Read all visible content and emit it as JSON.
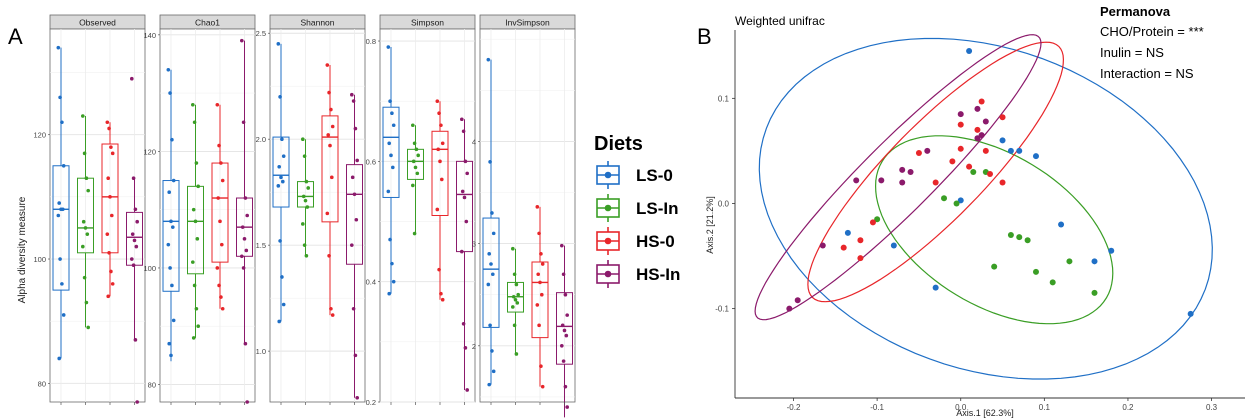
{
  "panel_a": {
    "letter": "A",
    "ylabel": "Alpha diversity measure",
    "legend": {
      "title": "Diets",
      "entries": [
        {
          "label": "LS-0",
          "color": "#1f6fc6"
        },
        {
          "label": "LS-In",
          "color": "#3a9e25"
        },
        {
          "label": "HS-0",
          "color": "#e8262a"
        },
        {
          "label": "HS-In",
          "color": "#8b1a6b"
        }
      ]
    }
  },
  "panel_b": {
    "letter": "B",
    "title": "Weighted unifrac",
    "xlabel": "Axis.1   [62.3%]",
    "ylabel": "Axis.2   [21.2%]",
    "permanova": {
      "title": "Permanova",
      "lines": [
        "CHO/Protein = ***",
        "Inulin = NS",
        "Interaction = NS"
      ]
    }
  },
  "chart_data": [
    {
      "type": "box",
      "title": "Observed",
      "ylabel": "Alpha diversity measure",
      "ylim": [
        77,
        137
      ],
      "yticks": [
        80,
        100,
        120
      ],
      "groups": [
        {
          "name": "LS-0",
          "box": {
            "q1": 95,
            "median": 108,
            "q3": 115,
            "lo": 84,
            "hi": 134
          },
          "points": [
            134,
            126,
            122,
            115,
            109,
            108,
            108,
            107,
            100,
            96,
            91,
            84
          ]
        },
        {
          "name": "LS-In",
          "box": {
            "q1": 101,
            "median": 105,
            "q3": 113,
            "lo": 89,
            "hi": 123
          },
          "points": [
            123,
            117,
            113,
            111,
            106,
            105,
            104,
            102,
            97,
            93,
            89
          ]
        },
        {
          "name": "HS-0",
          "box": {
            "q1": 101,
            "median": 110,
            "q3": 118.5,
            "lo": 94,
            "hi": 122
          },
          "points": [
            122,
            121,
            118,
            117,
            113,
            110,
            107,
            104,
            101,
            98,
            96,
            94
          ]
        },
        {
          "name": "HS-In",
          "box": {
            "q1": 99,
            "median": 103.5,
            "q3": 107.5,
            "lo": 87,
            "hi": 113
          },
          "points": [
            129,
            113,
            108,
            106,
            104,
            103,
            102,
            100,
            99,
            87,
            77
          ]
        }
      ]
    },
    {
      "type": "box",
      "title": "Chao1",
      "ylim": [
        77,
        141
      ],
      "yticks": [
        80,
        100,
        120,
        140
      ],
      "groups": [
        {
          "name": "LS-0",
          "box": {
            "q1": 96,
            "median": 108,
            "q3": 115,
            "lo": 84,
            "hi": 134
          },
          "points": [
            134,
            130,
            122,
            115,
            113,
            108,
            107,
            104,
            100,
            97,
            91,
            87,
            85
          ]
        },
        {
          "name": "LS-In",
          "box": {
            "q1": 99,
            "median": 108,
            "q3": 114,
            "lo": 88,
            "hi": 128
          },
          "points": [
            128,
            125,
            118,
            114,
            110,
            108,
            105,
            101,
            97,
            93,
            90,
            88
          ]
        },
        {
          "name": "HS-0",
          "box": {
            "q1": 101,
            "median": 112,
            "q3": 118,
            "lo": 93,
            "hi": 128
          },
          "points": [
            128,
            121,
            118,
            115,
            112,
            108,
            104,
            100,
            97,
            95,
            93
          ]
        },
        {
          "name": "HS-In",
          "box": {
            "q1": 102,
            "median": 107,
            "q3": 112,
            "lo": 87,
            "hi": 139
          },
          "points": [
            139,
            125,
            112,
            109,
            107,
            105,
            103,
            102,
            100,
            87,
            77
          ]
        }
      ]
    },
    {
      "type": "box",
      "title": "Shannon",
      "ylim": [
        0.76,
        2.52
      ],
      "yticks": [
        1.0,
        1.5,
        2.0,
        2.5
      ],
      "groups": [
        {
          "name": "LS-0",
          "box": {
            "q1": 1.68,
            "median": 1.83,
            "q3": 2.01,
            "lo": 1.14,
            "hi": 2.45
          },
          "points": [
            2.45,
            2.2,
            2.0,
            1.92,
            1.87,
            1.82,
            1.8,
            1.78,
            1.52,
            1.35,
            1.22,
            1.14
          ]
        },
        {
          "name": "LS-In",
          "box": {
            "q1": 1.68,
            "median": 1.73,
            "q3": 1.8,
            "lo": 1.45,
            "hi": 2.0
          },
          "points": [
            2.0,
            1.92,
            1.8,
            1.77,
            1.73,
            1.71,
            1.68,
            1.6,
            1.5,
            1.45
          ]
        },
        {
          "name": "HS-0",
          "box": {
            "q1": 1.61,
            "median": 2.01,
            "q3": 2.11,
            "lo": 1.17,
            "hi": 2.35
          },
          "points": [
            2.35,
            2.22,
            2.14,
            2.06,
            2.02,
            1.97,
            1.82,
            1.65,
            1.45,
            1.2,
            1.17
          ]
        },
        {
          "name": "HS-In",
          "box": {
            "q1": 1.41,
            "median": 1.74,
            "q3": 1.88,
            "lo": 0.78,
            "hi": 2.21
          },
          "points": [
            2.21,
            2.18,
            2.05,
            1.9,
            1.82,
            1.74,
            1.62,
            1.5,
            1.2,
            0.98,
            0.78
          ]
        }
      ]
    },
    {
      "type": "box",
      "title": "Simpson",
      "ylim": [
        0.2,
        0.82
      ],
      "yticks": [
        0.2,
        0.4,
        0.6,
        0.8
      ],
      "groups": [
        {
          "name": "LS-0",
          "box": {
            "q1": 0.54,
            "median": 0.64,
            "q3": 0.69,
            "lo": 0.38,
            "hi": 0.79
          },
          "points": [
            0.79,
            0.7,
            0.68,
            0.66,
            0.63,
            0.61,
            0.59,
            0.55,
            0.47,
            0.43,
            0.4,
            0.38
          ]
        },
        {
          "name": "LS-In",
          "box": {
            "q1": 0.57,
            "median": 0.6,
            "q3": 0.62,
            "lo": 0.48,
            "hi": 0.66
          },
          "points": [
            0.66,
            0.63,
            0.62,
            0.61,
            0.6,
            0.59,
            0.58,
            0.56,
            0.48
          ]
        },
        {
          "name": "HS-0",
          "box": {
            "q1": 0.51,
            "median": 0.62,
            "q3": 0.65,
            "lo": 0.37,
            "hi": 0.7
          },
          "points": [
            0.7,
            0.68,
            0.66,
            0.63,
            0.62,
            0.6,
            0.57,
            0.52,
            0.42,
            0.38,
            0.37
          ]
        },
        {
          "name": "HS-In",
          "box": {
            "q1": 0.45,
            "median": 0.545,
            "q3": 0.6,
            "lo": 0.22,
            "hi": 0.67
          },
          "points": [
            0.67,
            0.65,
            0.6,
            0.58,
            0.55,
            0.54,
            0.5,
            0.45,
            0.33,
            0.29,
            0.22
          ]
        }
      ]
    },
    {
      "type": "box",
      "title": "InvSimpson",
      "ylim": [
        1.45,
        5.1
      ],
      "yticks": [
        2,
        3,
        4
      ],
      "groups": [
        {
          "name": "LS-0",
          "box": {
            "q1": 2.18,
            "median": 2.75,
            "q3": 3.25,
            "lo": 1.62,
            "hi": 4.8
          },
          "points": [
            4.8,
            3.8,
            3.3,
            3.1,
            2.9,
            2.8,
            2.7,
            2.6,
            2.2,
            1.95,
            1.75,
            1.62
          ]
        },
        {
          "name": "LS-In",
          "box": {
            "q1": 2.33,
            "median": 2.48,
            "q3": 2.62,
            "lo": 1.92,
            "hi": 2.95
          },
          "points": [
            2.95,
            2.7,
            2.6,
            2.5,
            2.48,
            2.45,
            2.42,
            2.38,
            2.2,
            1.92
          ]
        },
        {
          "name": "HS-0",
          "box": {
            "q1": 2.08,
            "median": 2.62,
            "q3": 2.82,
            "lo": 1.6,
            "hi": 3.36
          },
          "points": [
            3.36,
            3.1,
            2.9,
            2.8,
            2.7,
            2.62,
            2.5,
            2.4,
            2.2,
            1.8,
            1.6
          ]
        },
        {
          "name": "HS-In",
          "box": {
            "q1": 1.82,
            "median": 2.19,
            "q3": 2.52,
            "lo": 1.3,
            "hi": 2.98
          },
          "points": [
            2.98,
            2.7,
            2.5,
            2.3,
            2.2,
            2.15,
            2.1,
            2.0,
            1.85,
            1.6,
            1.4
          ]
        }
      ]
    },
    {
      "type": "scatter",
      "title": "Weighted unifrac",
      "xlabel": "Axis.1   [62.3%]",
      "ylabel": "Axis.2   [21.2%]",
      "xlim": [
        -0.27,
        0.34
      ],
      "ylim": [
        -0.185,
        0.165
      ],
      "xticks": [
        -0.2,
        -0.1,
        0.0,
        0.1,
        0.2,
        0.3
      ],
      "yticks": [
        -0.1,
        0.0,
        0.1
      ],
      "series": [
        {
          "name": "LS-0",
          "points": [
            [
              0.01,
              0.145
            ],
            [
              0.07,
              0.05
            ],
            [
              0.09,
              0.045
            ],
            [
              0.05,
              0.06
            ],
            [
              -0.03,
              -0.08
            ],
            [
              -0.135,
              -0.028
            ],
            [
              -0.08,
              -0.04
            ],
            [
              0.12,
              -0.02
            ],
            [
              0.18,
              -0.045
            ],
            [
              0.275,
              -0.105
            ],
            [
              0.16,
              -0.055
            ],
            [
              0.06,
              0.05
            ],
            [
              0.0,
              0.003
            ]
          ],
          "ellipse": {
            "cx": 0.03,
            "cy": -0.005,
            "rx": 0.275,
            "ry": 0.155,
            "angle_deg": -12
          }
        },
        {
          "name": "LS-In",
          "points": [
            [
              0.06,
              -0.03
            ],
            [
              0.07,
              -0.032
            ],
            [
              0.08,
              -0.035
            ],
            [
              0.04,
              -0.06
            ],
            [
              0.13,
              -0.055
            ],
            [
              0.16,
              -0.085
            ],
            [
              0.11,
              -0.075
            ],
            [
              0.09,
              -0.065
            ],
            [
              -0.02,
              0.005
            ],
            [
              -0.1,
              -0.015
            ],
            [
              0.03,
              0.03
            ],
            [
              -0.005,
              0.0
            ],
            [
              0.015,
              0.03
            ]
          ],
          "ellipse": {
            "cx": 0.04,
            "cy": -0.025,
            "rx": 0.15,
            "ry": 0.075,
            "angle_deg": -22
          }
        },
        {
          "name": "HS-0",
          "points": [
            [
              0.025,
              0.097
            ],
            [
              0.05,
              0.082
            ],
            [
              0.0,
              0.075
            ],
            [
              0.02,
              0.07
            ],
            [
              -0.05,
              0.048
            ],
            [
              0.03,
              0.05
            ],
            [
              -0.01,
              0.04
            ],
            [
              0.0,
              0.052
            ],
            [
              -0.105,
              -0.018
            ],
            [
              -0.12,
              -0.035
            ],
            [
              -0.14,
              -0.042
            ],
            [
              -0.12,
              -0.052
            ],
            [
              0.035,
              0.028
            ],
            [
              0.05,
              0.02
            ],
            [
              -0.03,
              0.02
            ],
            [
              0.01,
              0.035
            ]
          ],
          "ellipse": {
            "cx": -0.03,
            "cy": 0.03,
            "rx": 0.19,
            "ry": 0.05,
            "angle_deg": 38
          }
        },
        {
          "name": "HS-In",
          "points": [
            [
              0.02,
              0.09
            ],
            [
              0.03,
              0.078
            ],
            [
              0.0,
              0.085
            ],
            [
              0.02,
              0.062
            ],
            [
              -0.07,
              0.032
            ],
            [
              -0.06,
              0.03
            ],
            [
              -0.07,
              0.02
            ],
            [
              -0.095,
              0.022
            ],
            [
              -0.04,
              0.05
            ],
            [
              -0.205,
              -0.1
            ],
            [
              -0.195,
              -0.092
            ],
            [
              -0.165,
              -0.04
            ],
            [
              -0.125,
              0.022
            ],
            [
              0.025,
              0.065
            ]
          ],
          "ellipse": {
            "cx": -0.075,
            "cy": 0.025,
            "rx": 0.215,
            "ry": 0.037,
            "angle_deg": 38
          }
        }
      ]
    }
  ]
}
